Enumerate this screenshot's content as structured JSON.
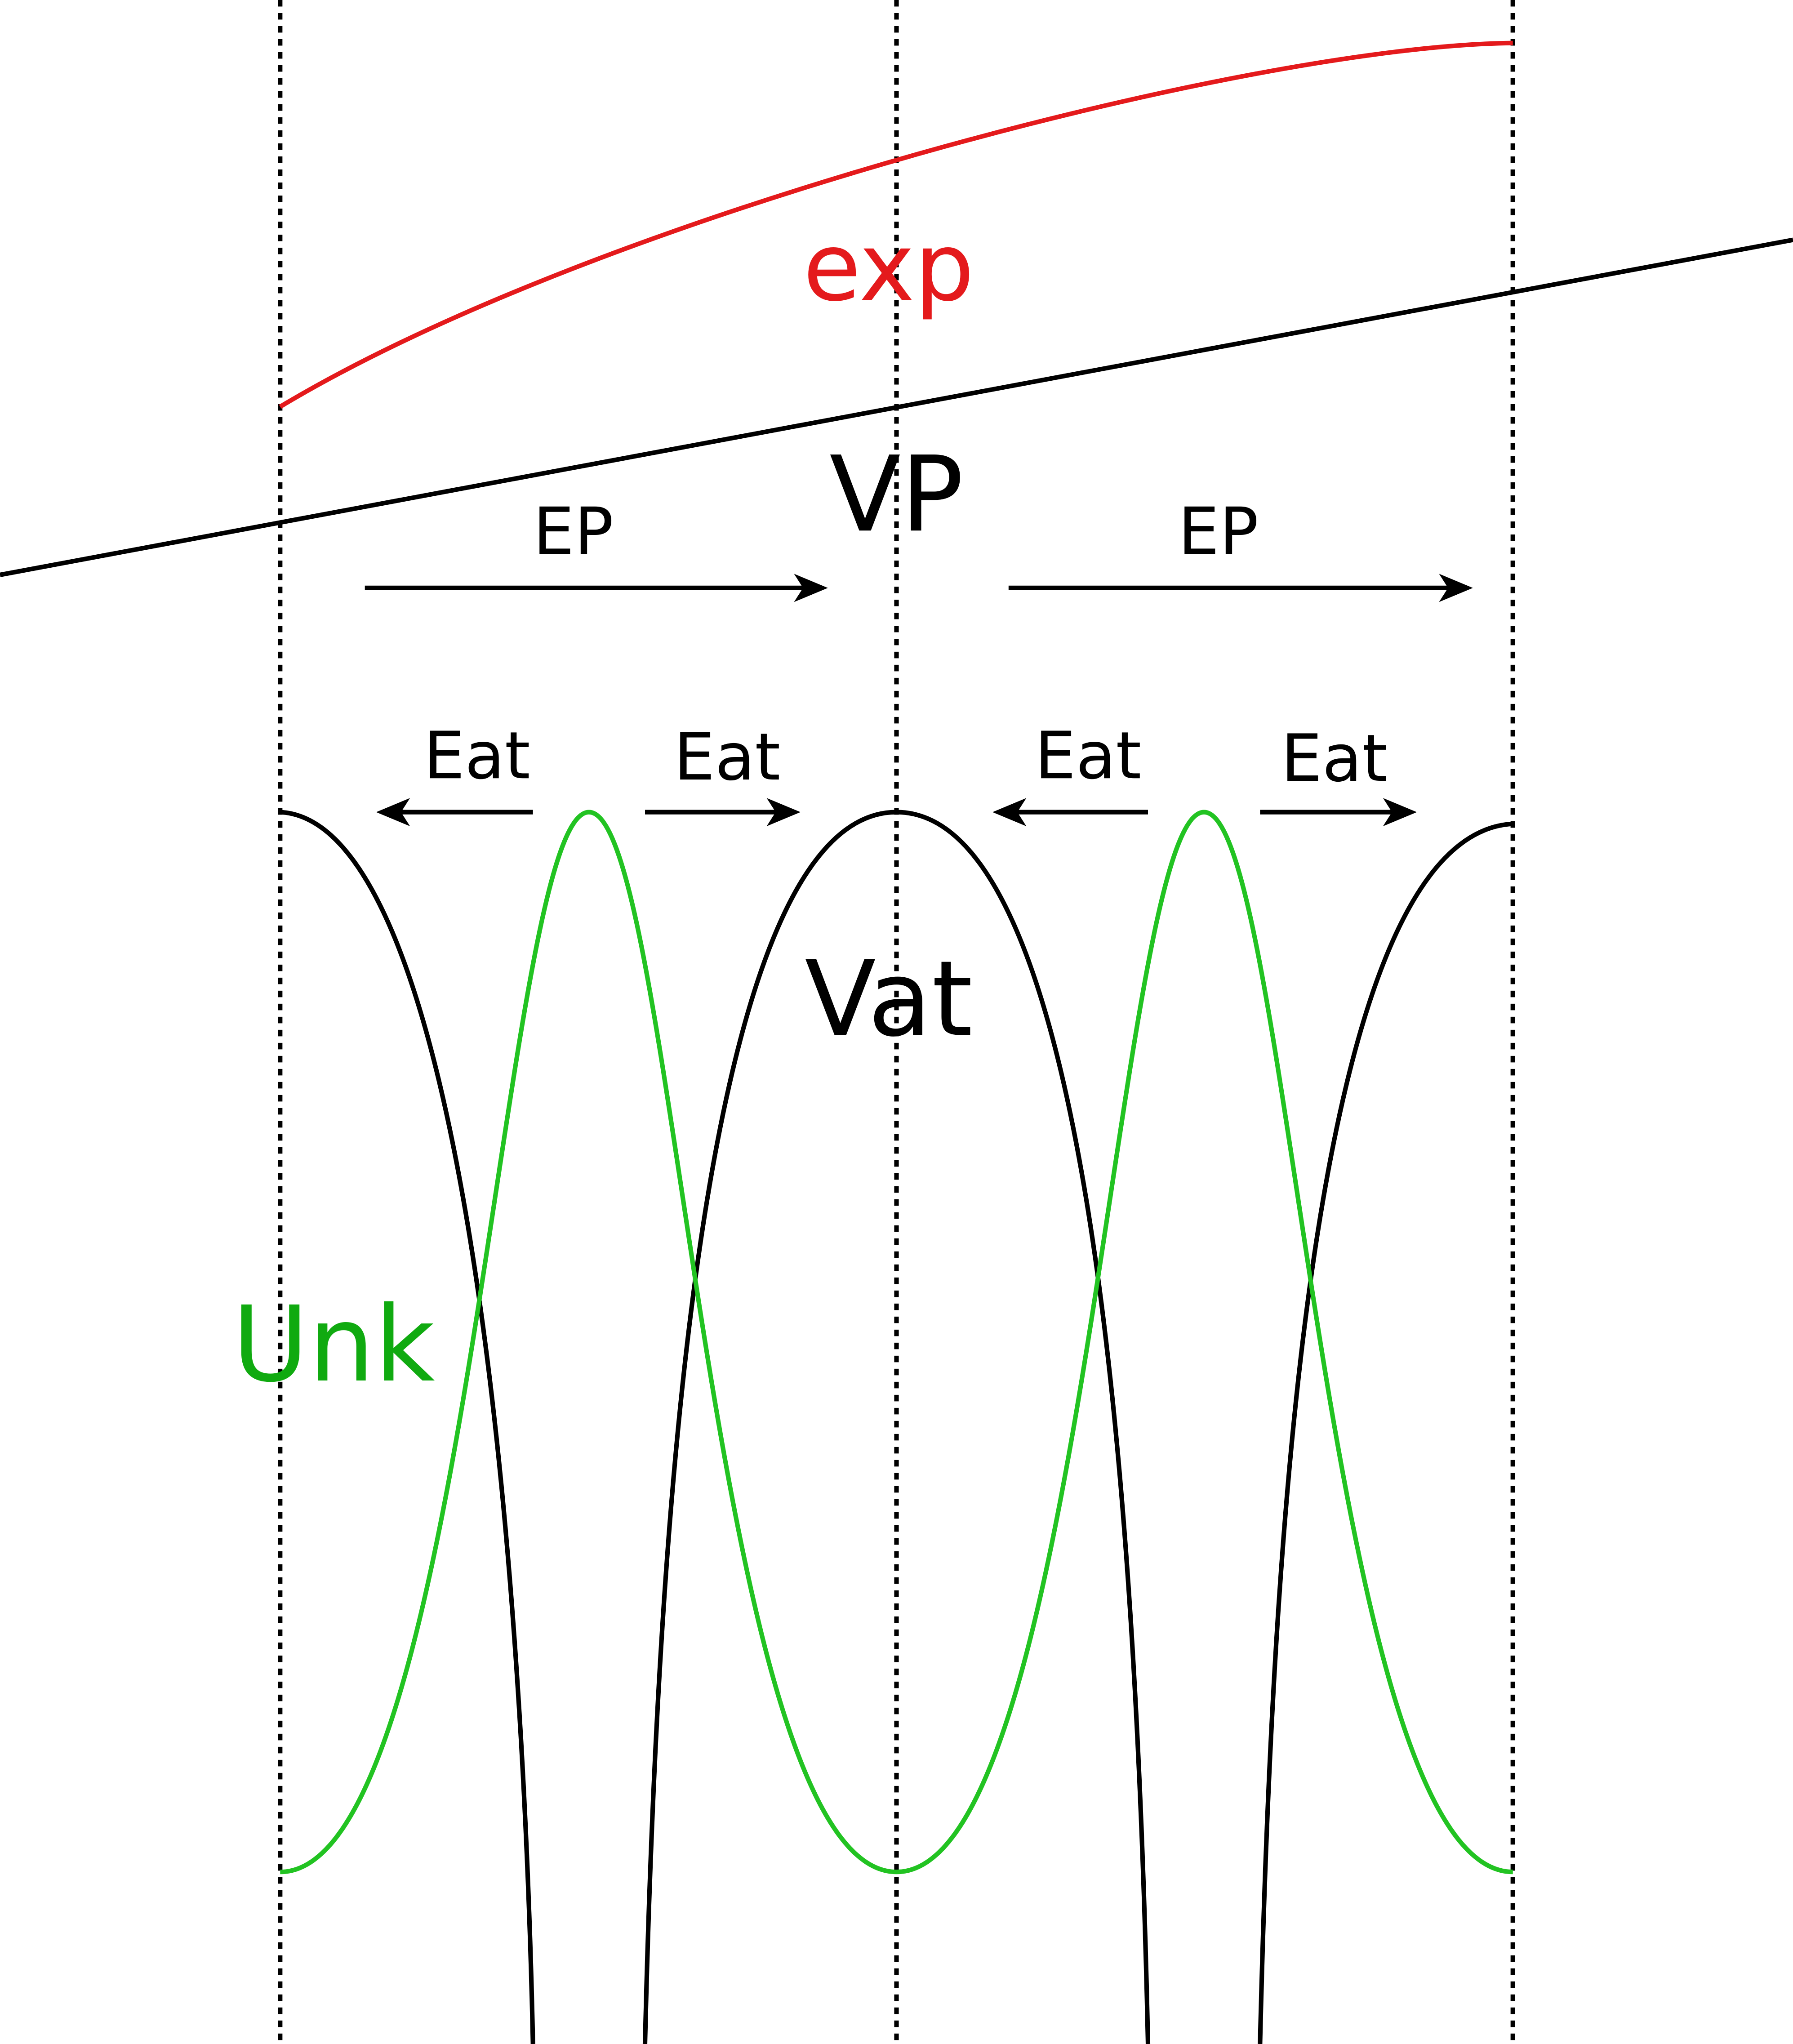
{
  "labels": {
    "exp": "exp",
    "vp": "VP",
    "ep_left": "EP",
    "ep_right": "EP",
    "eat_1": "Eat",
    "eat_2": "Eat",
    "eat_3": "Eat",
    "eat_4": "Eat",
    "vat": "Vat",
    "unk": "Unk"
  },
  "colors": {
    "exp": "#e41a1c",
    "vp": "#000000",
    "vat": "#000000",
    "unk_curve": "#22c322",
    "unk_label": "#10aa10",
    "arrows": "#000000",
    "dotted_guides": "#000000"
  }
}
